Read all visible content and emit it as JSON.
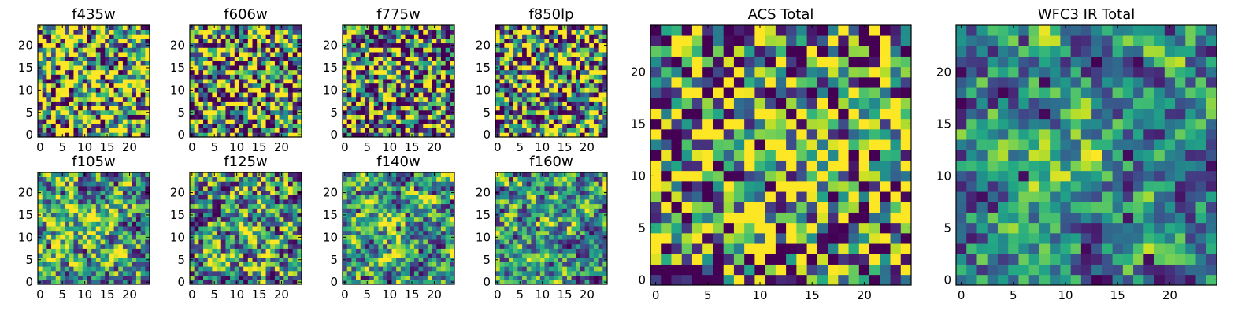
{
  "chart_data": [
    {
      "type": "heatmap",
      "title": "f435w",
      "xticks": [
        "0",
        "5",
        "10",
        "15",
        "20"
      ],
      "yticks": [
        "0",
        "5",
        "10",
        "15",
        "20"
      ],
      "xlim": [
        -0.5,
        24.5
      ],
      "ylim": [
        -0.5,
        24.5
      ],
      "grid": false,
      "colormap": "viridis",
      "pattern": {
        "seed": 11,
        "smooth": 0.0,
        "bias": 0.18,
        "spread": 0.3,
        "peak": [
          12,
          11
        ],
        "peak_amp": 0.1,
        "dark_rate": 0.06
      }
    },
    {
      "type": "heatmap",
      "title": "f606w",
      "xticks": [
        "0",
        "5",
        "10",
        "15",
        "20"
      ],
      "yticks": [
        "0",
        "5",
        "10",
        "15",
        "20"
      ],
      "xlim": [
        -0.5,
        24.5
      ],
      "ylim": [
        -0.5,
        24.5
      ],
      "grid": false,
      "colormap": "viridis",
      "pattern": {
        "seed": 23,
        "smooth": 0.0,
        "bias": 0.06,
        "spread": 0.3,
        "peak": [
          12,
          12
        ],
        "peak_amp": 0.2,
        "dark_rate": 0.05
      }
    },
    {
      "type": "heatmap",
      "title": "f775w",
      "xticks": [
        "0",
        "5",
        "10",
        "15",
        "20"
      ],
      "yticks": [
        "0",
        "5",
        "10",
        "15",
        "20"
      ],
      "xlim": [
        -0.5,
        24.5
      ],
      "ylim": [
        -0.5,
        24.5
      ],
      "grid": false,
      "colormap": "viridis",
      "pattern": {
        "seed": 37,
        "smooth": 0.0,
        "bias": -0.05,
        "spread": 0.3,
        "peak": [
          11,
          12
        ],
        "peak_amp": 0.18,
        "dark_rate": 0.05
      }
    },
    {
      "type": "heatmap",
      "title": "f850lp",
      "xticks": [
        "0",
        "5",
        "10",
        "15",
        "20"
      ],
      "yticks": [
        "0",
        "5",
        "10",
        "15",
        "20"
      ],
      "xlim": [
        -0.5,
        24.5
      ],
      "ylim": [
        -0.5,
        24.5
      ],
      "grid": false,
      "colormap": "viridis",
      "pattern": {
        "seed": 41,
        "smooth": 0.0,
        "bias": 0.05,
        "spread": 0.3,
        "peak": [
          12,
          12
        ],
        "peak_amp": 0.18,
        "dark_rate": 0.06
      }
    },
    {
      "type": "heatmap",
      "title": "f105w",
      "xticks": [
        "0",
        "5",
        "10",
        "15",
        "20"
      ],
      "yticks": [
        "0",
        "5",
        "10",
        "15",
        "20"
      ],
      "xlim": [
        -0.5,
        24.5
      ],
      "ylim": [
        -0.5,
        24.5
      ],
      "grid": false,
      "colormap": "viridis",
      "pattern": {
        "seed": 53,
        "smooth": 0.45,
        "bias": 0.08,
        "spread": 0.3,
        "peak": [
          12,
          12
        ],
        "peak_amp": 0.25,
        "dark_rate": 0.03
      }
    },
    {
      "type": "heatmap",
      "title": "f125w",
      "xticks": [
        "0",
        "5",
        "10",
        "15",
        "20"
      ],
      "yticks": [
        "0",
        "5",
        "10",
        "15",
        "20"
      ],
      "xlim": [
        -0.5,
        24.5
      ],
      "ylim": [
        -0.5,
        24.5
      ],
      "grid": false,
      "colormap": "viridis",
      "pattern": {
        "seed": 67,
        "smooth": 0.4,
        "bias": 0.04,
        "spread": 0.32,
        "peak": [
          11,
          12
        ],
        "peak_amp": 0.22,
        "dark_rate": 0.04
      }
    },
    {
      "type": "heatmap",
      "title": "f140w",
      "xticks": [
        "0",
        "5",
        "10",
        "15",
        "20"
      ],
      "yticks": [
        "0",
        "5",
        "10",
        "15",
        "20"
      ],
      "xlim": [
        -0.5,
        24.5
      ],
      "ylim": [
        -0.5,
        24.5
      ],
      "grid": false,
      "colormap": "viridis",
      "pattern": {
        "seed": 71,
        "smooth": 0.5,
        "bias": 0.04,
        "spread": 0.3,
        "peak": [
          11,
          12
        ],
        "peak_amp": 0.25,
        "dark_rate": 0.03
      }
    },
    {
      "type": "heatmap",
      "title": "f160w",
      "xticks": [
        "0",
        "5",
        "10",
        "15",
        "20"
      ],
      "yticks": [
        "0",
        "5",
        "10",
        "15",
        "20"
      ],
      "xlim": [
        -0.5,
        24.5
      ],
      "ylim": [
        -0.5,
        24.5
      ],
      "grid": false,
      "colormap": "viridis",
      "pattern": {
        "seed": 83,
        "smooth": 0.5,
        "bias": 0.02,
        "spread": 0.28,
        "peak": [
          12,
          12
        ],
        "peak_amp": 0.3,
        "dark_rate": 0.03
      }
    },
    {
      "type": "heatmap",
      "title": "ACS Total",
      "xticks": [
        "0",
        "5",
        "10",
        "15",
        "20"
      ],
      "yticks": [
        "0",
        "5",
        "10",
        "15",
        "20"
      ],
      "xlim": [
        -0.5,
        24.5
      ],
      "ylim": [
        -0.5,
        24.5
      ],
      "grid": false,
      "colormap": "viridis",
      "pattern": {
        "seed": 97,
        "smooth": 0.0,
        "bias": 0.02,
        "spread": 0.24,
        "peak": [
          13,
          12
        ],
        "peak_amp": 0.3,
        "dark_rate": 0.03
      }
    },
    {
      "type": "heatmap",
      "title": "WFC3 IR Total",
      "xticks": [
        "0",
        "5",
        "10",
        "15",
        "20"
      ],
      "yticks": [
        "0",
        "5",
        "10",
        "15",
        "20"
      ],
      "xlim": [
        -0.5,
        24.5
      ],
      "ylim": [
        -0.5,
        24.5
      ],
      "grid": false,
      "colormap": "viridis",
      "pattern": {
        "seed": 101,
        "smooth": 0.55,
        "bias": -0.04,
        "spread": 0.22,
        "peak": [
          12,
          12
        ],
        "peak_amp": 0.35,
        "dark_rate": 0.02
      }
    }
  ]
}
